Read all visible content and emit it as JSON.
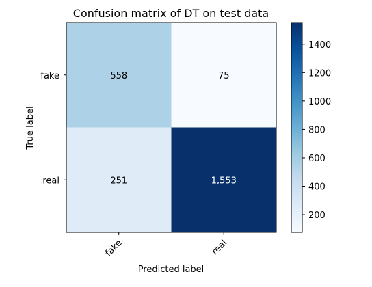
{
  "chart_data": {
    "type": "heatmap",
    "title": "Confusion matrix of DT on test data",
    "xlabel": "Predicted label",
    "ylabel": "True label",
    "x_categories": [
      "fake",
      "real"
    ],
    "y_categories": [
      "fake",
      "real"
    ],
    "values": [
      [
        558,
        75
      ],
      [
        251,
        1553
      ]
    ],
    "cell_labels": [
      [
        "558",
        "75"
      ],
      [
        "251",
        "1,553"
      ]
    ],
    "colormap": "Blues",
    "colorbar": {
      "range": [
        75,
        1553
      ],
      "ticks": [
        200,
        400,
        600,
        800,
        1000,
        1200,
        1400
      ],
      "tick_labels": [
        "200",
        "400",
        "600",
        "800",
        "1000",
        "1200",
        "1400"
      ]
    },
    "grid": false
  }
}
